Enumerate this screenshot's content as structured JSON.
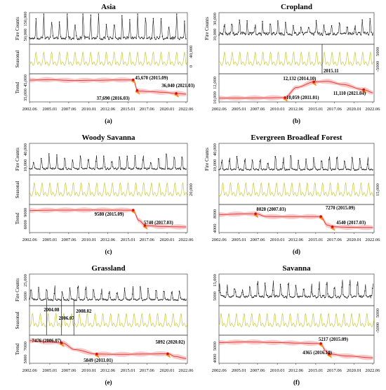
{
  "chart_data": [
    {
      "type": "line",
      "title": "Asia",
      "subtitle": "(a)",
      "x_ticks": [
        "2002.06",
        "2005.01",
        "2007.06",
        "2010.01",
        "2012.06",
        "2015.01",
        "2017.06",
        "2020.01",
        "2022.06"
      ],
      "panels": [
        {
          "ylabel": "Fire Counts",
          "y_ticks": [
            "50,000",
            "150,000"
          ],
          "peak": 165000,
          "base": 48000,
          "season_amp": 0.6,
          "min": 20000,
          "max": 190000
        },
        {
          "ylabel": "Seasonal",
          "y_ticks": [
            "40,000",
            "0"
          ],
          "right_axis": true
        },
        {
          "ylabel": "Trend",
          "y_ticks": [
            "35,000",
            "45,000"
          ]
        }
      ],
      "trend_knots": [
        [
          2002.4,
          45500
        ],
        [
          2005.0,
          45800
        ],
        [
          2008.0,
          45200
        ],
        [
          2011.0,
          45400
        ],
        [
          2013.5,
          45600
        ],
        [
          2015.67,
          45670
        ],
        [
          2016.25,
          37690
        ],
        [
          2018.0,
          37300
        ],
        [
          2019.5,
          36800
        ],
        [
          2021.25,
          36040
        ],
        [
          2022.5,
          35500
        ]
      ],
      "breakpoints": [
        {
          "date": "2015.09",
          "value": 45670,
          "label": "45,670 (2015.09)"
        },
        {
          "date": "2016.03",
          "value": 37690,
          "label": "37,690 (2016.03)"
        },
        {
          "date": "2021.03",
          "value": 36040,
          "label": "36,040 (2021.03)"
        }
      ],
      "trend_range": [
        30000,
        50000
      ]
    },
    {
      "type": "line",
      "title": "Cropland",
      "subtitle": "(b)",
      "x_ticks": [
        "2002.06",
        "2005.01",
        "2007.06",
        "2010.01",
        "2012.06",
        "2015.01",
        "2017.06",
        "2020.01",
        "2022.06"
      ],
      "panels": [
        {
          "ylabel": "Fire Counts",
          "y_ticks": [
            "10,000",
            "30,000"
          ],
          "peak": 26000,
          "base": 12000,
          "season_amp": 0.5,
          "min": 0,
          "max": 38000
        },
        {
          "ylabel": "",
          "y_ticks": [
            "5000",
            "-5000"
          ],
          "right_axis": true,
          "vline": "2015.11",
          "vline_label": "2015.11"
        },
        {
          "ylabel": "",
          "y_ticks": [
            "10,000",
            "12,000"
          ]
        }
      ],
      "trend_knots": [
        [
          2002.4,
          10000
        ],
        [
          2005.0,
          10000
        ],
        [
          2008.0,
          10020
        ],
        [
          2010.5,
          10059
        ],
        [
          2011.0,
          10059
        ],
        [
          2012.5,
          11400
        ],
        [
          2014.8,
          12132
        ],
        [
          2016.5,
          12200
        ],
        [
          2018.5,
          11800
        ],
        [
          2021.25,
          11110
        ],
        [
          2022.5,
          10700
        ]
      ],
      "breakpoints": [
        {
          "date": "2011.01",
          "value": 10059,
          "label": "10,059 (2011.01)"
        },
        {
          "date": "2014.10",
          "value": 12132,
          "label": "12,132 (2014.10)"
        },
        {
          "date": "2021.04",
          "value": 11110,
          "label": "11,110 (2021.04)"
        }
      ],
      "trend_range": [
        9500,
        13200
      ]
    },
    {
      "type": "line",
      "title": "Woody Savanna",
      "subtitle": "(c)",
      "x_ticks": [
        "2002.06",
        "2005.01",
        "2007.06",
        "2010.01",
        "2012.06",
        "2015.01",
        "2017.06",
        "2020.01",
        "2022.06"
      ],
      "panels": [
        {
          "ylabel": "Fire Counts",
          "y_ticks": [
            "10,000",
            "40,000"
          ],
          "peak": 30000,
          "base": 8000,
          "season_amp": 0.7,
          "min": 0,
          "max": 48000
        },
        {
          "ylabel": "Seasonal",
          "y_ticks": [
            "20,000"
          ],
          "right_axis": true
        },
        {
          "ylabel": "Trend",
          "y_ticks": [
            "6000",
            "9000"
          ]
        }
      ],
      "trend_knots": [
        [
          2002.4,
          9500
        ],
        [
          2006.0,
          9600
        ],
        [
          2010.0,
          9620
        ],
        [
          2013.0,
          9600
        ],
        [
          2015.67,
          9580
        ],
        [
          2016.4,
          7000
        ],
        [
          2017.25,
          5740
        ],
        [
          2019.5,
          5500
        ],
        [
          2022.5,
          5400
        ]
      ],
      "breakpoints": [
        {
          "date": "2015.09",
          "value": 9580,
          "label": "9580 (2015.09)"
        },
        {
          "date": "2017.03",
          "value": 5740,
          "label": "5740 (2017.03)"
        }
      ],
      "trend_range": [
        4000,
        11000
      ]
    },
    {
      "type": "line",
      "title": "Evergreen Broadleaf Forest",
      "subtitle": "(d)",
      "x_ticks": [
        "2002.06",
        "2005.01",
        "2007.06",
        "2010.01",
        "2012.06",
        "2015.01",
        "2017.06",
        "2020.01",
        "2022.06"
      ],
      "panels": [
        {
          "ylabel": "Fire Counts",
          "y_ticks": [
            "10,000",
            "40,000"
          ],
          "peak": 28000,
          "base": 7000,
          "season_amp": 0.6,
          "min": 0,
          "max": 50000
        },
        {
          "ylabel": "",
          "y_ticks": [
            "15,000"
          ],
          "right_axis": true
        },
        {
          "ylabel": "",
          "y_ticks": [
            "4000",
            "8000"
          ]
        }
      ],
      "trend_knots": [
        [
          2002.4,
          7800
        ],
        [
          2005.5,
          8000
        ],
        [
          2007.25,
          8020
        ],
        [
          2008.5,
          7300
        ],
        [
          2011.0,
          7250
        ],
        [
          2015.67,
          7270
        ],
        [
          2016.5,
          5000
        ],
        [
          2017.25,
          4540
        ],
        [
          2019.5,
          4400
        ],
        [
          2022.5,
          4350
        ]
      ],
      "breakpoints": [
        {
          "date": "2007.03",
          "value": 8020,
          "label": "8020 (2007.03)"
        },
        {
          "date": "2015.09",
          "value": 7270,
          "label": "7270 (2015.09)"
        },
        {
          "date": "2017.03",
          "value": 4540,
          "label": "4540 (2017.03)"
        }
      ],
      "trend_range": [
        3000,
        10500
      ]
    },
    {
      "type": "line",
      "title": "Grassland",
      "subtitle": "(e)",
      "x_ticks": [
        "2002.06",
        "2005.01",
        "2007.06",
        "2010.01",
        "2012.06",
        "2015.01",
        "2017.06",
        "2020.01",
        "2022.06"
      ],
      "panels": [
        {
          "ylabel": "Fire Counts",
          "y_ticks": [
            "5000",
            "25,000"
          ],
          "peak": 22000,
          "base": 6000,
          "season_amp": 0.7,
          "min": 0,
          "max": 38000
        },
        {
          "ylabel": "Seasonal",
          "y_ticks": [],
          "right_axis": true,
          "vlines": [
            "2004.08",
            "2006.07",
            "2008.02"
          ]
        },
        {
          "ylabel": "Trend",
          "y_ticks": [
            "5000",
            "7000"
          ]
        }
      ],
      "trend_knots": [
        [
          2002.4,
          7800
        ],
        [
          2004.7,
          7600
        ],
        [
          2006.6,
          7476
        ],
        [
          2008.2,
          6500
        ],
        [
          2011.0,
          5849
        ],
        [
          2014.0,
          5800
        ],
        [
          2017.0,
          5850
        ],
        [
          2020.17,
          5892
        ],
        [
          2021.0,
          5500
        ],
        [
          2022.5,
          5200
        ]
      ],
      "breakpoints": [
        {
          "date": "2006.07",
          "value": 7476,
          "label": "7476 (2006.07)"
        },
        {
          "date": "2011.01",
          "value": 5849,
          "label": "5849 (2011.01)"
        },
        {
          "date": "2020.02",
          "value": 5892,
          "label": "5892 (2020.02)"
        }
      ],
      "trend_range": [
        4500,
        8600
      ],
      "vline_labels": [
        "2004.08",
        "2006.07",
        "2008.02"
      ]
    },
    {
      "type": "line",
      "title": "Savanna",
      "subtitle": "(f)",
      "x_ticks": [
        "2002.06",
        "2005.01",
        "2007.06",
        "2010.01",
        "2012.06",
        "2015.01",
        "2017.06",
        "2020.01",
        "2022.06"
      ],
      "panels": [
        {
          "ylabel": "",
          "y_ticks": [
            "5000",
            "15,000"
          ],
          "peak": 14000,
          "base": 5000,
          "season_amp": 0.6,
          "min": 0,
          "max": 19000
        },
        {
          "ylabel": "",
          "y_ticks": [
            "5000",
            "-5000"
          ],
          "right_axis": true
        },
        {
          "ylabel": "",
          "y_ticks": [
            "4000",
            "5000"
          ]
        }
      ],
      "trend_knots": [
        [
          2002.4,
          5300
        ],
        [
          2006.0,
          5350
        ],
        [
          2010.0,
          5300
        ],
        [
          2013.0,
          5250
        ],
        [
          2015.67,
          5217
        ],
        [
          2016.3,
          4600
        ],
        [
          2016.75,
          4365
        ],
        [
          2019.0,
          4200
        ],
        [
          2022.5,
          4050
        ]
      ],
      "breakpoints": [
        {
          "date": "2015.09",
          "value": 5217,
          "label": "5217 (2015.09)"
        },
        {
          "date": "2016.10",
          "value": 4365,
          "label": "4365 (2016.10)"
        }
      ],
      "trend_range": [
        3600,
        5900
      ]
    }
  ],
  "colors": {
    "raw": "#111111",
    "seasonal": "#c8c83a",
    "trend": "#e83a3a",
    "band": "#f6c3c3",
    "bp": "#ff8c1a",
    "bp_dot": "#d01010",
    "frame": "#444444"
  }
}
